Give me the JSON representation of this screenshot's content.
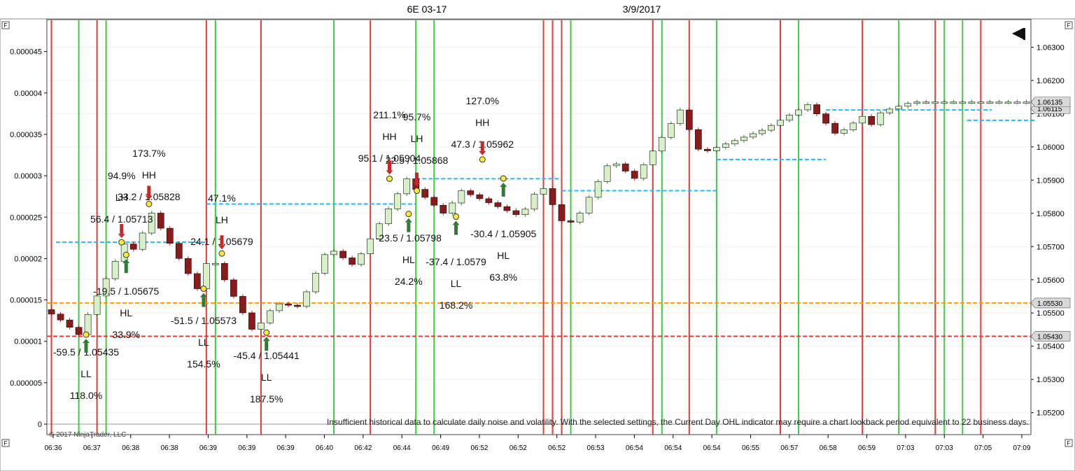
{
  "header": {
    "instrument": "6E 03-17",
    "date": "3/9/2017"
  },
  "copyright": "© 2017 NinjaTrader, LLC",
  "message": "Insufficient historical data to calculate daily noise and volatility. With the selected settings, the Current Day OHL indicator may require a chart lookback period equivalent to 22 business days.",
  "panel_flag": "F",
  "colors": {
    "bull": "#2e7d32",
    "bear": "#b71c1c",
    "swing_line": "#29b6f6",
    "day_open": "#ffa000",
    "day_low": "#e53935",
    "vline_red": "#e53935",
    "vline_green": "#43c743"
  },
  "chart_data": {
    "type": "line",
    "title": "6E 03-17",
    "x_tick_labels": [
      "06:36",
      "06:37",
      "06:38",
      "06:38",
      "06:39",
      "06:39",
      "06:39",
      "06:40",
      "06:42",
      "06:44",
      "06:49",
      "06:52",
      "06:52",
      "06:52",
      "06:53",
      "06:54",
      "06:54",
      "06:54",
      "06:55",
      "06:57",
      "06:58",
      "06:59",
      "07:03",
      "07:03",
      "07:05",
      "07:09"
    ],
    "left_axis": {
      "ticks": [
        "0",
        "0.000005",
        "0.00001",
        "0.000015",
        "0.00002",
        "0.000025",
        "0.00003",
        "0.000035",
        "0.00004",
        "0.000045"
      ],
      "ylim": [
        0,
        4.7e-05
      ]
    },
    "right_axis": {
      "ticks": [
        "1.05200",
        "1.05300",
        "1.05400",
        "1.05500",
        "1.05600",
        "1.05700",
        "1.05800",
        "1.05900",
        "1.06000",
        "1.06100",
        "1.06200",
        "1.06300"
      ],
      "ylim": [
        1.05134,
        1.06383
      ]
    },
    "price_path": {
      "x": [
        0,
        1.5,
        4,
        5.4,
        9.1,
        10.7,
        11.4,
        17,
        18.4,
        23.2,
        25.6,
        28.2,
        31.4,
        34.2,
        40,
        40.5,
        44.1,
        46,
        52.5,
        54.7,
        57.3,
        58.6,
        62.4,
        65,
        70,
        72.1,
        72.8,
        79.2,
        84,
        85.7,
        87.2,
        90.5,
        91,
        92.1,
        95.5
      ],
      "y": [
        1.0551,
        1.0549,
        1.05435,
        1.0552,
        1.05713,
        1.05675,
        1.05828,
        1.05573,
        1.05679,
        1.05441,
        1.05529,
        1.05519,
        1.05698,
        1.05642,
        1.05904,
        1.05884,
        1.05798,
        1.05868,
        1.0579,
        1.05889,
        1.05763,
        1.05782,
        1.05962,
        1.05905,
        1.06111,
        1.05987,
        1.05986,
        1.06052,
        1.06127,
        1.0608,
        1.06035,
        1.06102,
        1.06067,
        1.06106,
        1.06135
      ]
    },
    "swing_points": [
      {
        "type": "LL",
        "time": "06:37",
        "price": 1.05435,
        "label_a": "-59.5",
        "label_b": "1.05435",
        "percent": "118.0%"
      },
      {
        "type": "LH",
        "time": "06:39",
        "price": 1.05713,
        "label_a": "56.4",
        "label_b": "1.05713",
        "percent": "94.9%"
      },
      {
        "type": "HL",
        "time": "06:39",
        "price": 1.05675,
        "label_a": "-19.5",
        "label_b": "1.05675",
        "percent": "33.9%"
      },
      {
        "type": "HH",
        "time": "06:39",
        "price": 1.05828,
        "label_a": "33.2",
        "label_b": "1.05828",
        "percent": "173.7%"
      },
      {
        "type": "LL",
        "time": "06:40",
        "price": 1.05573,
        "label_a": "-51.5",
        "label_b": "1.05573",
        "percent": "154.5%"
      },
      {
        "type": "LH",
        "time": "06:42",
        "price": 1.05679,
        "label_a": "24.1",
        "label_b": "1.05679",
        "percent": "47.1%"
      },
      {
        "type": "LL",
        "time": "06:49",
        "price": 1.05441,
        "label_a": "-45.4",
        "label_b": "1.05441",
        "percent": "187.5%"
      },
      {
        "type": "HH",
        "time": "06:54",
        "price": 1.05904,
        "label_a": "95.1",
        "label_b": "1.05904",
        "percent": "211.1%"
      },
      {
        "type": "HL",
        "time": "06:54",
        "price": 1.05798,
        "label_a": "-23.5",
        "label_b": "1.05798",
        "percent": "24.2%"
      },
      {
        "type": "LH",
        "time": "06:54",
        "price": 1.05868,
        "label_a": "22.5",
        "label_b": "1.05868",
        "percent": "95.7%"
      },
      {
        "type": "LL",
        "time": "06:57",
        "price": 1.0579,
        "label_a": "-37.4",
        "label_b": "1.0579",
        "percent": "168.2%"
      },
      {
        "type": "HH",
        "time": "06:59",
        "price": 1.05962,
        "label_a": "47.3",
        "label_b": "1.05962",
        "percent": "127.0%"
      },
      {
        "type": "HL",
        "time": "07:03",
        "price": 1.05905,
        "label_a": "-30.4",
        "label_b": "1.05905",
        "percent": "63.8%"
      }
    ],
    "horizontal_levels": [
      {
        "name": "day_open",
        "price": 1.0553,
        "label": "1.05530"
      },
      {
        "name": "day_low",
        "price": 1.0543,
        "label": "1.05430"
      }
    ],
    "current_price": {
      "price": 1.06135,
      "label": "1.06135"
    },
    "last_swing_price": {
      "price": 1.06115,
      "label": "1.06115"
    },
    "vertical_lines_red": [
      0,
      5,
      17,
      23,
      35,
      54,
      55,
      56,
      66,
      70,
      80,
      89,
      97,
      102
    ],
    "vertical_lines_green": [
      3,
      6,
      18,
      31,
      40,
      42,
      57,
      67,
      73,
      82,
      93,
      98,
      100
    ]
  }
}
